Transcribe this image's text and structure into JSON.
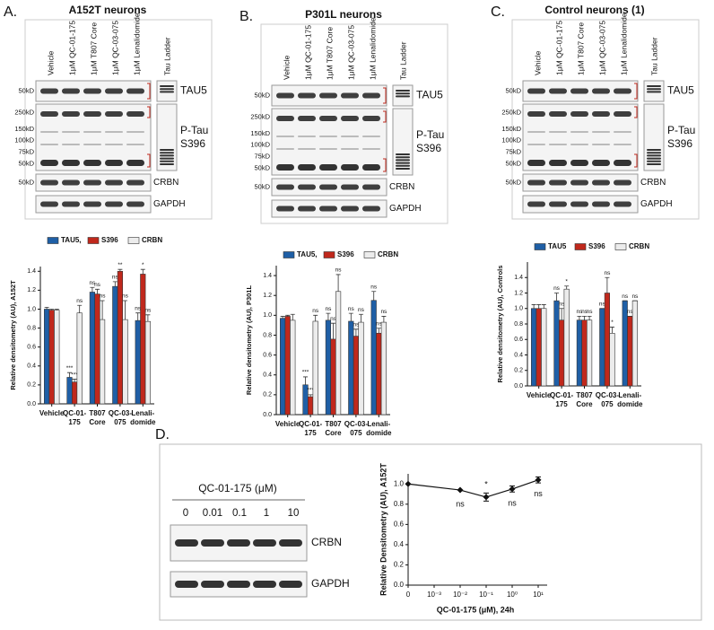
{
  "panels": [
    {
      "label": "A.",
      "title": "A152T neurons",
      "lanes": [
        "Vehicle",
        "1μM QC-01-175",
        "1μM T807 Core",
        "1μM QC-03-075",
        "1μM Lenalidomide",
        "Tau Ladder"
      ],
      "bands": [
        {
          "name": [
            "TAU5"
          ],
          "markers": [
            "50kD"
          ]
        },
        {
          "name": [
            "P-Tau",
            "S396"
          ],
          "markers": [
            "250kD",
            "150kD",
            "100kD",
            "75kD",
            "50kD"
          ]
        },
        {
          "name": [
            "CRBN"
          ],
          "markers": [
            "50kD"
          ]
        },
        {
          "name": [
            "GAPDH"
          ]
        }
      ]
    },
    {
      "label": "B.",
      "title": "P301L neurons",
      "lanes": [
        "Vehicle",
        "1μM QC-01-175",
        "1μM T807 Core",
        "1μM QC-03-075",
        "1μM Lenalidomide",
        "Tau Ladder"
      ],
      "bands": [
        {
          "name": [
            "TAU5"
          ],
          "markers": [
            "50kD"
          ]
        },
        {
          "name": [
            "P-Tau",
            "S396"
          ],
          "markers": [
            "250kD",
            "150kD",
            "100kD",
            "75kD",
            "50kD"
          ]
        },
        {
          "name": [
            "CRBN"
          ],
          "markers": [
            "50kD"
          ]
        },
        {
          "name": [
            "GAPDH"
          ]
        }
      ]
    },
    {
      "label": "C.",
      "title": "Control neurons (1)",
      "lanes": [
        "Vehicle",
        "1μM QC-01-175",
        "1μM T807 Core",
        "1μM QC-03-075",
        "1μM Lenalidomide",
        "Tau Ladder"
      ],
      "bands": [
        {
          "name": [
            "TAU5"
          ],
          "markers": [
            "50kD"
          ]
        },
        {
          "name": [
            "P-Tau",
            "S396"
          ],
          "markers": [
            "250kD",
            "150kD",
            "100kD",
            "75kD",
            "50kD"
          ]
        },
        {
          "name": [
            "CRBN"
          ],
          "markers": [
            "50kD"
          ]
        },
        {
          "name": [
            "GAPDH"
          ]
        }
      ]
    },
    {
      "label": "D.",
      "title": "QC-01-175 (μM)",
      "lanes": [
        "0",
        "0.01",
        "0.1",
        "1",
        "10"
      ],
      "bands": [
        {
          "name": [
            "CRBN"
          ]
        },
        {
          "name": [
            "GAPDH"
          ]
        }
      ]
    }
  ],
  "chart_data": [
    {
      "type": "bar",
      "y_label": "Relative densitometry (AU), A152T",
      "categories": [
        [
          "Vehicle"
        ],
        [
          "QC-01-",
          "175"
        ],
        [
          "T807",
          "Core"
        ],
        [
          "QC-03-",
          "075"
        ],
        [
          "Lenali-",
          "domide"
        ]
      ],
      "series": [
        {
          "name": "TAU5,",
          "color": "#1f5fa6",
          "values": [
            1.0,
            0.28,
            1.18,
            1.24,
            0.88
          ],
          "errors": [
            0.02,
            0.05,
            0.05,
            0.05,
            0.08
          ],
          "significance": [
            null,
            "***",
            "ns",
            "ns",
            "ns"
          ]
        },
        {
          "name": "S396",
          "color": "#c0281c",
          "values": [
            0.99,
            0.23,
            1.16,
            1.4,
            1.37
          ],
          "errors": [
            0.01,
            0.03,
            0.05,
            0.02,
            0.05
          ],
          "significance": [
            null,
            "***",
            "ns",
            "**",
            "*"
          ]
        },
        {
          "name": "CRBN",
          "color": "#ececec",
          "values": [
            0.99,
            0.96,
            0.89,
            0.89,
            0.87
          ],
          "errors": [
            0.01,
            0.08,
            0.2,
            0.2,
            0.07
          ],
          "significance": [
            null,
            "ns",
            "ns",
            "ns",
            "ns"
          ]
        }
      ],
      "ylim": [
        0,
        1.45
      ],
      "yticks": [
        {
          "value": 0,
          "label": "0.0"
        },
        0.2,
        0.4,
        0.6,
        0.8,
        {
          "value": 1,
          "label": "1.0"
        },
        1.2,
        1.4
      ]
    },
    {
      "type": "bar",
      "y_label": "Relative densitometry (AU), P301L",
      "categories": [
        [
          "Vehicle"
        ],
        [
          "QC-01-",
          "175"
        ],
        [
          "T807",
          "Core"
        ],
        [
          "QC-03-",
          "075"
        ],
        [
          "Lenali-",
          "domide"
        ]
      ],
      "series": [
        {
          "name": "TAU5,",
          "color": "#1f5fa6",
          "values": [
            0.97,
            0.3,
            0.95,
            0.94,
            1.15
          ],
          "errors": [
            0.02,
            0.08,
            0.07,
            0.08,
            0.09
          ],
          "significance": [
            null,
            "***",
            "ns",
            "ns",
            "ns"
          ]
        },
        {
          "name": "S396",
          "color": "#c0281c",
          "values": [
            0.99,
            0.18,
            0.76,
            0.79,
            0.82
          ],
          "errors": [
            0.01,
            0.02,
            0.16,
            0.07,
            0.05
          ],
          "significance": [
            null,
            "***",
            "ns",
            "ns",
            "ns"
          ]
        },
        {
          "name": "CRBN",
          "color": "#ececec",
          "values": [
            0.95,
            0.94,
            1.24,
            0.93,
            0.93
          ],
          "errors": [
            0.06,
            0.06,
            0.17,
            0.08,
            0.06
          ],
          "significance": [
            null,
            "ns",
            "ns",
            "ns",
            "ns"
          ]
        }
      ],
      "ylim": [
        0,
        1.5
      ],
      "yticks": [
        {
          "value": 0,
          "label": "0.0"
        },
        0.2,
        0.4,
        0.6,
        0.8,
        {
          "value": 1,
          "label": "1.0"
        },
        1.2,
        1.4
      ]
    },
    {
      "type": "bar",
      "y_label": "Relative densitometry (AU), Controls",
      "categories": [
        [
          "Vehicle"
        ],
        [
          "QC-01-",
          "175"
        ],
        [
          "T807",
          "Core"
        ],
        [
          "QC-03-",
          "075"
        ],
        [
          "Lenali-",
          "domide"
        ]
      ],
      "series": [
        {
          "name": "TAU5",
          "color": "#1f5fa6",
          "values": [
            1.0,
            1.1,
            0.85,
            1.0,
            1.1
          ],
          "errors": [
            0.05,
            0.1,
            0.05,
            0,
            0
          ],
          "significance": [
            null,
            "ns",
            "ns",
            "ns",
            "ns"
          ]
        },
        {
          "name": "S396",
          "color": "#c0281c",
          "values": [
            1.0,
            0.85,
            0.85,
            1.2,
            0.9
          ],
          "errors": [
            0.05,
            0.15,
            0.05,
            0.2,
            0
          ],
          "significance": [
            null,
            "ns",
            "ns",
            "ns",
            "ns"
          ]
        },
        {
          "name": "CRBN",
          "color": "#ececec",
          "values": [
            1.0,
            1.25,
            0.85,
            0.68,
            1.1
          ],
          "errors": [
            0.05,
            0.04,
            0.05,
            0.08,
            0
          ],
          "significance": [
            null,
            "*",
            "ns",
            "*",
            "ns"
          ]
        }
      ],
      "ylim": [
        0,
        1.6
      ],
      "yticks": [
        {
          "value": 0,
          "label": "0.0"
        },
        0.2,
        0.4,
        0.6,
        0.8,
        {
          "value": 1,
          "label": "1.0"
        },
        1.2,
        1.4
      ]
    },
    {
      "type": "scatter",
      "x_label": "QC-01-175 (μM), 24h",
      "y_label": "Relative Densitometry (AU), A152T",
      "xscale": "log",
      "x": [
        0,
        0.01,
        0.1,
        1,
        10
      ],
      "values": [
        1.0,
        0.94,
        0.87,
        0.95,
        1.04
      ],
      "errors": [
        null,
        null,
        0.04,
        0.03,
        0.03
      ],
      "significance": [
        null,
        "ns",
        "*",
        "ns",
        "ns"
      ],
      "color": "#111111",
      "xlim": [
        0,
        10
      ],
      "xticks": [
        0,
        {
          "value": 0.001,
          "label": "10⁻³"
        },
        {
          "value": 0.01,
          "label": "10⁻²"
        },
        {
          "value": 0.1,
          "label": "10⁻¹"
        },
        {
          "value": 1,
          "label": "10⁰"
        },
        {
          "value": 10,
          "label": "10¹"
        }
      ],
      "ylim": [
        0,
        1.1
      ],
      "yticks": [
        {
          "value": 0,
          "label": "0.0"
        },
        0.2,
        0.4,
        0.6,
        0.8,
        {
          "value": 1,
          "label": "1.0"
        }
      ]
    }
  ]
}
